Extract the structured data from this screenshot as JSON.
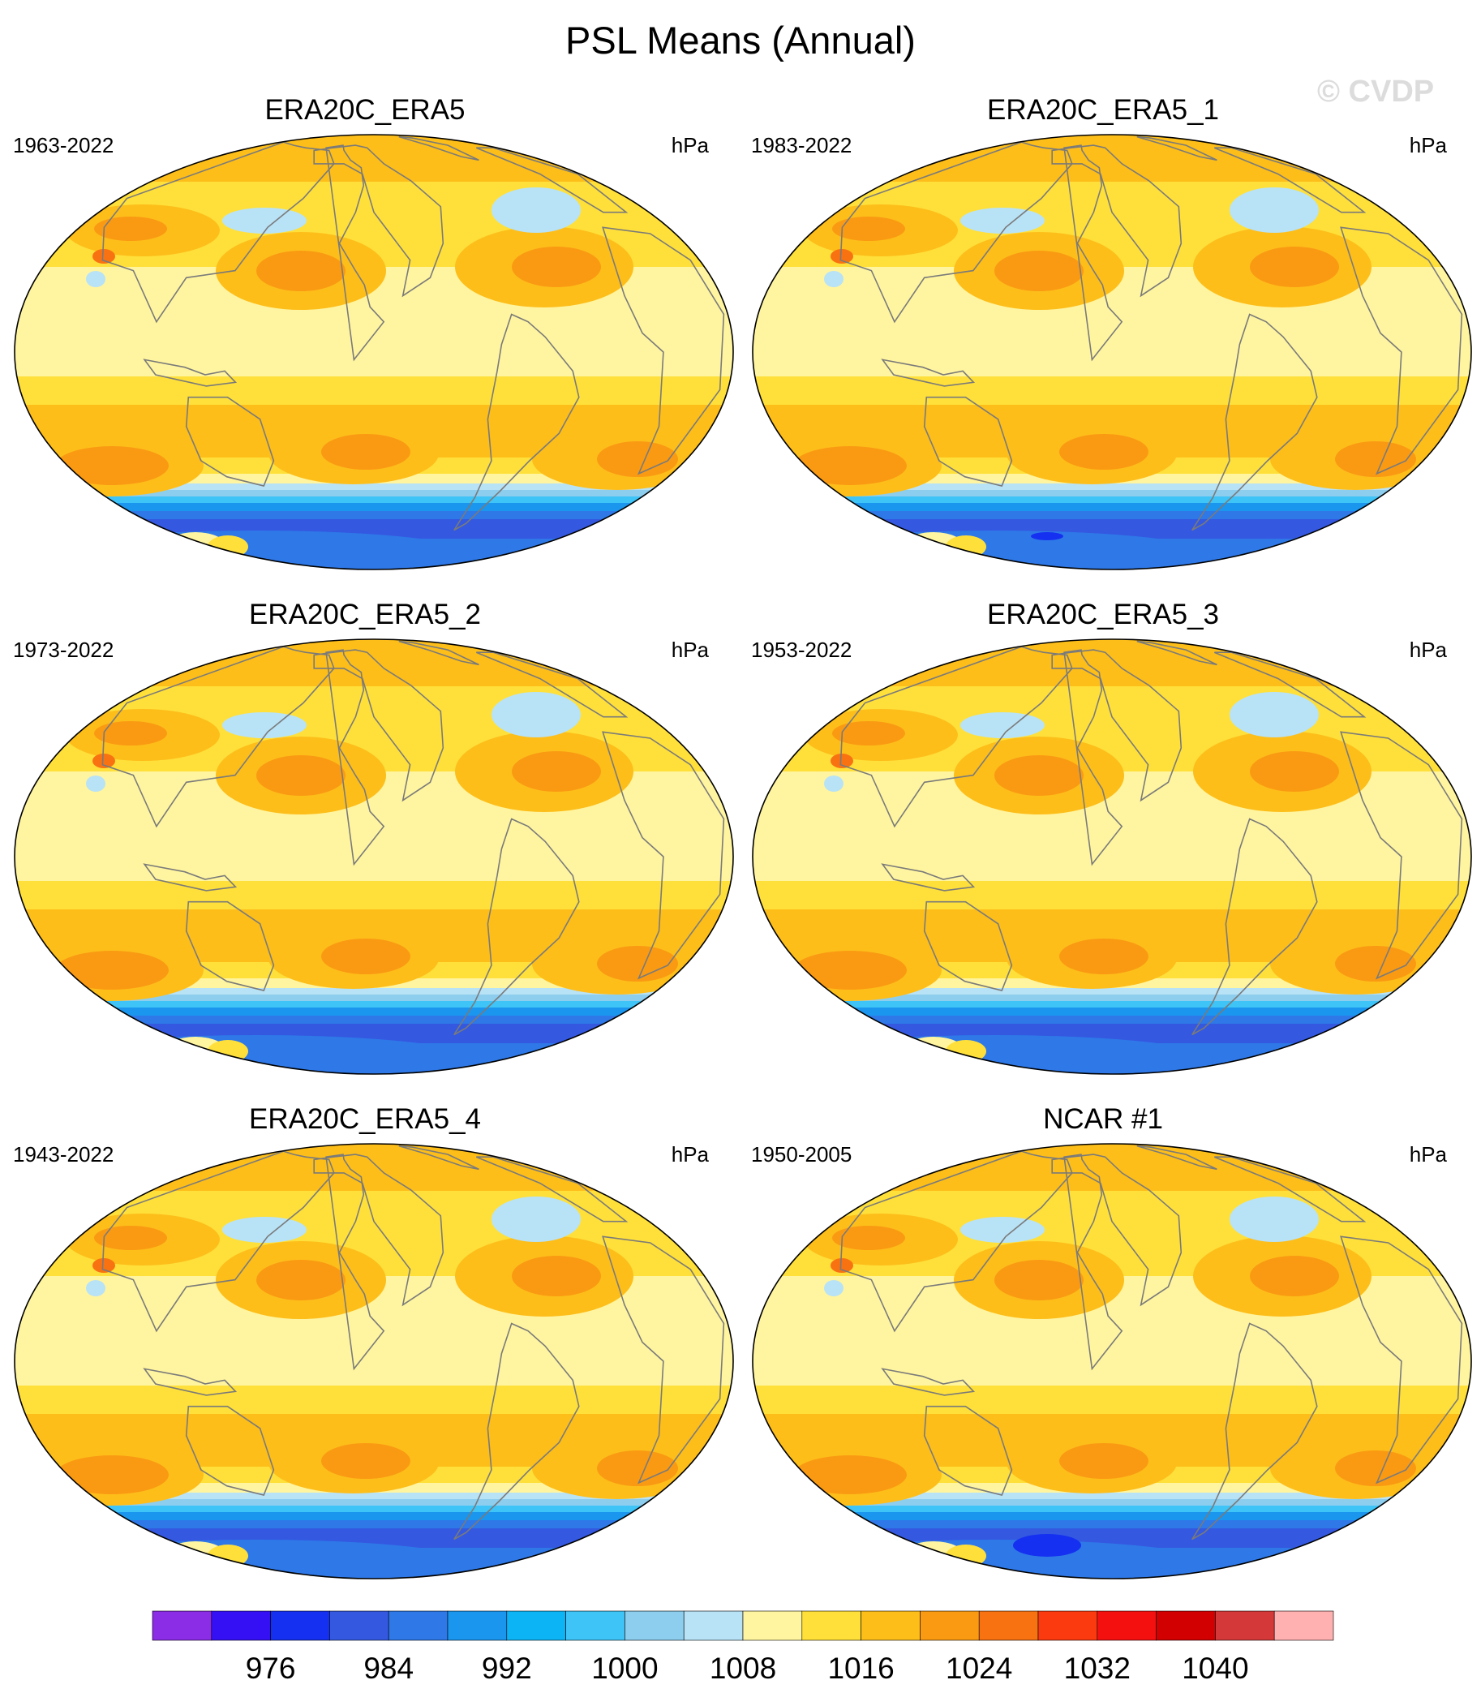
{
  "figure": {
    "title": "PSL Means (Annual)",
    "watermark": "© CVDP"
  },
  "panels": [
    {
      "title": "ERA20C_ERA5",
      "period": "1963-2022",
      "units": "hPa",
      "variant": 0
    },
    {
      "title": "ERA20C_ERA5_1",
      "period": "1983-2022",
      "units": "hPa",
      "variant": 1
    },
    {
      "title": "ERA20C_ERA5_2",
      "period": "1973-2022",
      "units": "hPa",
      "variant": 2
    },
    {
      "title": "ERA20C_ERA5_3",
      "period": "1953-2022",
      "units": "hPa",
      "variant": 3
    },
    {
      "title": "ERA20C_ERA5_4",
      "period": "1943-2022",
      "units": "hPa",
      "variant": 4
    },
    {
      "title": "NCAR #1",
      "period": "1950-2005",
      "units": "hPa",
      "variant": 5
    }
  ],
  "colorbar": {
    "colors": [
      "#8b2ce6",
      "#3510f5",
      "#1530f0",
      "#3458e0",
      "#2e78e8",
      "#1a96ef",
      "#0db4f5",
      "#3ec4f7",
      "#8dcdee",
      "#b8e2f6",
      "#fff5a0",
      "#ffe03a",
      "#fdbe1a",
      "#fa9a12",
      "#f87212",
      "#fb3a0f",
      "#f51010",
      "#d20000",
      "#d43838",
      "#ffb0b0"
    ],
    "labels": [
      "976",
      "984",
      "992",
      "1000",
      "1008",
      "1016",
      "1024",
      "1032",
      "1040"
    ]
  }
}
